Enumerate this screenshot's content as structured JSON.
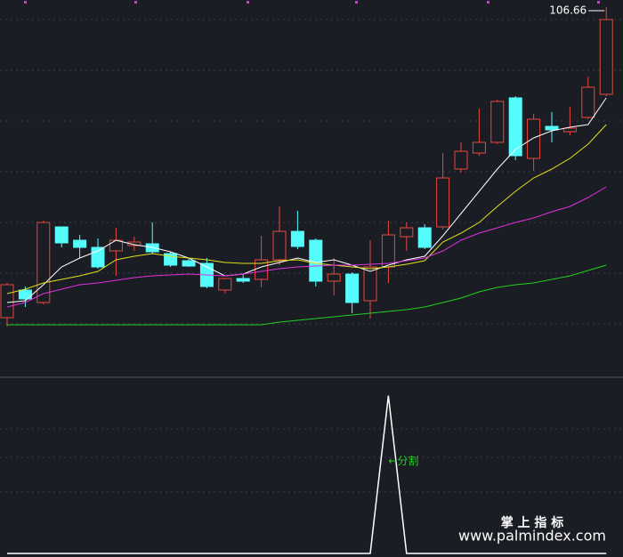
{
  "chart_data": [
    {
      "type": "candlestick",
      "up_color": "#e8473d",
      "down_color": "#54fcfc",
      "ylim": [
        65.46,
        107.46
      ],
      "open": [
        71.76,
        74.86,
        73.46,
        81.96,
        80.46,
        79.66,
        79.26,
        79.86,
        80.06,
        78.96,
        78.16,
        77.86,
        74.86,
        76.16,
        76.06,
        78.26,
        81.46,
        80.46,
        75.86,
        76.66,
        73.66,
        77.46,
        80.86,
        81.86,
        81.96,
        88.46,
        90.26,
        91.46,
        96.46,
        89.66,
        93.26,
        92.66,
        94.26,
        96.86
      ],
      "high": [
        75.66,
        75.26,
        82.66,
        81.96,
        81.06,
        80.66,
        81.86,
        80.86,
        82.46,
        79.16,
        78.46,
        78.46,
        76.26,
        76.66,
        80.96,
        84.26,
        83.76,
        80.66,
        78.46,
        76.86,
        80.46,
        82.66,
        82.46,
        82.26,
        90.26,
        91.46,
        95.26,
        96.26,
        96.66,
        94.66,
        94.86,
        95.46,
        98.86,
        106.66
      ],
      "low": [
        70.76,
        72.96,
        73.26,
        79.66,
        78.46,
        77.26,
        76.46,
        79.26,
        78.86,
        77.46,
        77.46,
        75.06,
        74.46,
        75.66,
        75.16,
        77.66,
        79.46,
        75.26,
        74.26,
        72.26,
        71.66,
        75.66,
        79.26,
        79.46,
        81.66,
        88.06,
        89.96,
        91.26,
        89.46,
        88.26,
        91.46,
        92.26,
        94.06,
        96.66
      ],
      "close": [
        75.46,
        73.86,
        82.46,
        80.16,
        79.66,
        77.46,
        80.46,
        80.26,
        79.16,
        77.66,
        77.56,
        75.26,
        76.16,
        75.86,
        78.26,
        81.46,
        79.76,
        75.86,
        76.66,
        73.46,
        77.46,
        81.06,
        81.86,
        79.66,
        87.46,
        90.46,
        91.46,
        96.06,
        89.96,
        94.06,
        92.86,
        93.06,
        97.66,
        105.26
      ],
      "series": [
        {
          "color": "#ffffff",
          "values": [
            73.46,
            73.66,
            75.46,
            77.46,
            78.46,
            79.26,
            80.46,
            79.96,
            79.66,
            79.16,
            78.46,
            77.46,
            76.46,
            76.66,
            77.46,
            77.96,
            78.46,
            77.96,
            78.26,
            77.66,
            76.96,
            77.66,
            78.26,
            78.66,
            80.96,
            83.46,
            85.96,
            88.46,
            90.66,
            91.96,
            92.76,
            93.16,
            93.46,
            96.46
          ]
        },
        {
          "color": "#e0e020",
          "values": [
            74.46,
            74.96,
            75.66,
            76.06,
            76.46,
            76.96,
            78.26,
            78.66,
            78.96,
            78.66,
            78.46,
            78.26,
            77.96,
            77.86,
            77.86,
            78.16,
            78.26,
            77.86,
            77.66,
            77.46,
            77.26,
            77.46,
            77.76,
            78.16,
            80.26,
            81.26,
            82.46,
            84.26,
            85.96,
            87.46,
            88.46,
            89.66,
            91.26,
            93.46
          ]
        },
        {
          "color": "#e030e0",
          "values": [
            72.96,
            73.46,
            74.46,
            74.96,
            75.46,
            75.66,
            75.96,
            76.26,
            76.46,
            76.56,
            76.66,
            76.56,
            76.46,
            76.66,
            76.96,
            77.26,
            77.46,
            77.56,
            77.66,
            77.66,
            77.76,
            77.86,
            78.16,
            78.46,
            79.26,
            80.46,
            81.26,
            81.86,
            82.46,
            82.96,
            83.66,
            84.26,
            85.26,
            86.46
          ]
        },
        {
          "color": "#20d020",
          "values": [
            70.96,
            70.96,
            70.96,
            70.96,
            70.96,
            70.96,
            70.96,
            70.96,
            70.96,
            70.96,
            70.96,
            70.96,
            70.96,
            70.96,
            70.96,
            71.26,
            71.46,
            71.66,
            71.86,
            72.06,
            72.26,
            72.46,
            72.66,
            72.96,
            73.46,
            73.96,
            74.66,
            75.16,
            75.46,
            75.66,
            76.06,
            76.46,
            77.06,
            77.66
          ]
        }
      ],
      "high_label": "106.66"
    },
    {
      "type": "line",
      "color": "#ffffff",
      "ylim": [
        0,
        1.1
      ],
      "values": [
        0,
        0,
        0,
        0,
        0,
        0,
        0,
        0,
        0,
        0,
        0,
        0,
        0,
        0,
        0,
        0,
        0,
        0,
        0,
        0,
        0,
        1,
        0,
        0,
        0,
        0,
        0,
        0,
        0,
        0,
        0,
        0,
        0,
        0
      ],
      "annotation": "←分割",
      "annotation_color": "#20d020"
    }
  ],
  "watermark": {
    "title": "掌 上 指 标",
    "url": "www.palmindex.com"
  }
}
